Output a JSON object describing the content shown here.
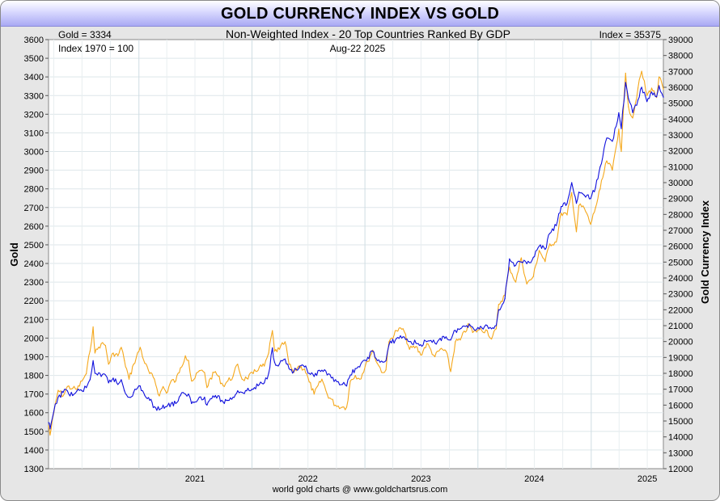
{
  "title": "GOLD CURRENCY INDEX VS GOLD",
  "subtitle": "Non-Weighted Index - 20 Top Countries Ranked By GDP",
  "gold_readout": "Gold = 3334",
  "index_readout": "Index = 35375",
  "base_note": "Index 1970 = 100",
  "date_label": "Aug-22  2025",
  "source": "world gold charts @ www.goldchartsrus.com",
  "colors": {
    "gold": "#f5a81c",
    "index": "#1010dd",
    "title_bg": "#a9a9f4"
  },
  "chart_data": {
    "type": "line",
    "ylabel": "Gold",
    "y2label": "Gold Currency Index",
    "ylim": [
      1300,
      3600
    ],
    "y2lim": [
      12000,
      39000
    ],
    "xlim": [
      "2020-03-15",
      "2025-08-22"
    ],
    "y_ticks": [
      "1300",
      "1400",
      "1500",
      "1600",
      "1700",
      "1800",
      "1900",
      "2000",
      "2100",
      "2200",
      "2300",
      "2400",
      "2500",
      "2600",
      "2700",
      "2800",
      "2900",
      "3000",
      "3100",
      "3200",
      "3300",
      "3400",
      "3500",
      "3600"
    ],
    "y2_ticks": [
      "12000",
      "13000",
      "14000",
      "15000",
      "16000",
      "17000",
      "18000",
      "19000",
      "20000",
      "21000",
      "22000",
      "23000",
      "24000",
      "25000",
      "26000",
      "27000",
      "28000",
      "29000",
      "30000",
      "31000",
      "32000",
      "33000",
      "34000",
      "35000",
      "36000",
      "37000",
      "38000",
      "39000"
    ],
    "x_ticks": [
      "2021",
      "2022",
      "2023",
      "2024",
      "2025"
    ],
    "grid": true,
    "series": [
      {
        "name": "Gold",
        "axis": "left",
        "color": "#f5a81c",
        "points": [
          [
            "2020-03-15",
            1530
          ],
          [
            "2020-03-20",
            1480
          ],
          [
            "2020-04-01",
            1600
          ],
          [
            "2020-04-15",
            1720
          ],
          [
            "2020-05-01",
            1690
          ],
          [
            "2020-05-15",
            1740
          ],
          [
            "2020-06-01",
            1730
          ],
          [
            "2020-06-15",
            1725
          ],
          [
            "2020-07-01",
            1770
          ],
          [
            "2020-07-15",
            1810
          ],
          [
            "2020-07-27",
            1930
          ],
          [
            "2020-08-06",
            2060
          ],
          [
            "2020-08-12",
            1920
          ],
          [
            "2020-08-20",
            1940
          ],
          [
            "2020-09-01",
            1970
          ],
          [
            "2020-09-15",
            1960
          ],
          [
            "2020-09-25",
            1860
          ],
          [
            "2020-10-10",
            1920
          ],
          [
            "2020-10-25",
            1905
          ],
          [
            "2020-11-05",
            1950
          ],
          [
            "2020-11-15",
            1880
          ],
          [
            "2020-11-30",
            1780
          ],
          [
            "2020-12-15",
            1860
          ],
          [
            "2021-01-05",
            1950
          ],
          [
            "2021-01-20",
            1865
          ],
          [
            "2021-02-05",
            1810
          ],
          [
            "2021-02-20",
            1780
          ],
          [
            "2021-03-08",
            1690
          ],
          [
            "2021-03-20",
            1740
          ],
          [
            "2021-03-31",
            1705
          ],
          [
            "2021-04-15",
            1770
          ],
          [
            "2021-04-30",
            1770
          ],
          [
            "2021-05-15",
            1840
          ],
          [
            "2021-05-31",
            1905
          ],
          [
            "2021-06-10",
            1880
          ],
          [
            "2021-06-20",
            1770
          ],
          [
            "2021-07-01",
            1785
          ],
          [
            "2021-07-15",
            1825
          ],
          [
            "2021-08-01",
            1815
          ],
          [
            "2021-08-09",
            1735
          ],
          [
            "2021-08-20",
            1785
          ],
          [
            "2021-09-05",
            1820
          ],
          [
            "2021-09-30",
            1745
          ],
          [
            "2021-10-15",
            1770
          ],
          [
            "2021-11-01",
            1795
          ],
          [
            "2021-11-16",
            1860
          ],
          [
            "2021-11-30",
            1780
          ],
          [
            "2021-12-15",
            1785
          ],
          [
            "2022-01-05",
            1810
          ],
          [
            "2022-01-25",
            1845
          ],
          [
            "2022-02-10",
            1850
          ],
          [
            "2022-02-24",
            1920
          ],
          [
            "2022-03-08",
            2040
          ],
          [
            "2022-03-15",
            1930
          ],
          [
            "2022-03-31",
            1940
          ],
          [
            "2022-04-18",
            1980
          ],
          [
            "2022-05-01",
            1860
          ],
          [
            "2022-05-16",
            1815
          ],
          [
            "2022-06-01",
            1850
          ],
          [
            "2022-06-20",
            1835
          ],
          [
            "2022-07-05",
            1765
          ],
          [
            "2022-07-21",
            1700
          ],
          [
            "2022-08-15",
            1780
          ],
          [
            "2022-09-01",
            1700
          ],
          [
            "2022-09-28",
            1640
          ],
          [
            "2022-10-20",
            1630
          ],
          [
            "2022-11-03",
            1630
          ],
          [
            "2022-11-15",
            1770
          ],
          [
            "2022-12-01",
            1800
          ],
          [
            "2022-12-15",
            1780
          ],
          [
            "2023-01-10",
            1875
          ],
          [
            "2023-01-26",
            1935
          ],
          [
            "2023-02-10",
            1865
          ],
          [
            "2023-02-28",
            1815
          ],
          [
            "2023-03-10",
            1830
          ],
          [
            "2023-03-20",
            1980
          ],
          [
            "2023-04-13",
            2040
          ],
          [
            "2023-05-04",
            2050
          ],
          [
            "2023-05-25",
            1940
          ],
          [
            "2023-06-15",
            1955
          ],
          [
            "2023-06-30",
            1910
          ],
          [
            "2023-07-20",
            1970
          ],
          [
            "2023-08-15",
            1900
          ],
          [
            "2023-09-01",
            1940
          ],
          [
            "2023-09-20",
            1930
          ],
          [
            "2023-10-05",
            1820
          ],
          [
            "2023-10-20",
            1980
          ],
          [
            "2023-11-05",
            1990
          ],
          [
            "2023-12-04",
            2075
          ],
          [
            "2023-12-15",
            2030
          ],
          [
            "2024-01-05",
            2045
          ],
          [
            "2024-01-31",
            2040
          ],
          [
            "2024-02-14",
            1995
          ],
          [
            "2024-02-29",
            2050
          ],
          [
            "2024-03-08",
            2180
          ],
          [
            "2024-03-28",
            2230
          ],
          [
            "2024-04-12",
            2380
          ],
          [
            "2024-05-02",
            2300
          ],
          [
            "2024-05-20",
            2430
          ],
          [
            "2024-06-07",
            2290
          ],
          [
            "2024-06-28",
            2330
          ],
          [
            "2024-07-17",
            2470
          ],
          [
            "2024-08-05",
            2410
          ],
          [
            "2024-08-20",
            2505
          ],
          [
            "2024-09-10",
            2515
          ],
          [
            "2024-09-26",
            2670
          ],
          [
            "2024-10-15",
            2660
          ],
          [
            "2024-10-30",
            2780
          ],
          [
            "2024-11-14",
            2570
          ],
          [
            "2024-11-22",
            2710
          ],
          [
            "2024-12-10",
            2695
          ],
          [
            "2024-12-30",
            2610
          ],
          [
            "2025-01-15",
            2700
          ],
          [
            "2025-01-30",
            2800
          ],
          [
            "2025-02-20",
            2950
          ],
          [
            "2025-03-10",
            2900
          ],
          [
            "2025-03-31",
            3120
          ],
          [
            "2025-04-08",
            3000
          ],
          [
            "2025-04-22",
            3420
          ],
          [
            "2025-05-01",
            3240
          ],
          [
            "2025-05-15",
            3180
          ],
          [
            "2025-06-01",
            3340
          ],
          [
            "2025-06-13",
            3430
          ],
          [
            "2025-06-30",
            3300
          ],
          [
            "2025-07-15",
            3340
          ],
          [
            "2025-07-31",
            3290
          ],
          [
            "2025-08-08",
            3400
          ],
          [
            "2025-08-22",
            3334
          ]
        ]
      },
      {
        "name": "Gold Currency Index",
        "axis": "right",
        "color": "#1010dd",
        "points": [
          [
            "2020-03-15",
            14900
          ],
          [
            "2020-03-20",
            14500
          ],
          [
            "2020-04-01",
            15600
          ],
          [
            "2020-04-15",
            16500
          ],
          [
            "2020-05-01",
            16800
          ],
          [
            "2020-05-15",
            16900
          ],
          [
            "2020-06-01",
            16600
          ],
          [
            "2020-06-15",
            16900
          ],
          [
            "2020-07-01",
            16900
          ],
          [
            "2020-07-15",
            17100
          ],
          [
            "2020-07-27",
            17600
          ],
          [
            "2020-08-06",
            18800
          ],
          [
            "2020-08-12",
            18000
          ],
          [
            "2020-08-20",
            17900
          ],
          [
            "2020-09-01",
            17800
          ],
          [
            "2020-09-15",
            17900
          ],
          [
            "2020-09-25",
            17400
          ],
          [
            "2020-10-10",
            17700
          ],
          [
            "2020-10-25",
            17300
          ],
          [
            "2020-11-05",
            17600
          ],
          [
            "2020-11-15",
            16900
          ],
          [
            "2020-11-30",
            16500
          ],
          [
            "2020-12-15",
            16800
          ],
          [
            "2021-01-05",
            17200
          ],
          [
            "2021-01-20",
            16600
          ],
          [
            "2021-02-05",
            16300
          ],
          [
            "2021-02-20",
            15900
          ],
          [
            "2021-03-08",
            15700
          ],
          [
            "2021-03-20",
            16000
          ],
          [
            "2021-03-31",
            15900
          ],
          [
            "2021-04-15",
            16100
          ],
          [
            "2021-04-30",
            16100
          ],
          [
            "2021-05-15",
            16600
          ],
          [
            "2021-05-31",
            16700
          ],
          [
            "2021-06-10",
            16700
          ],
          [
            "2021-06-20",
            16100
          ],
          [
            "2021-07-01",
            16200
          ],
          [
            "2021-07-15",
            16500
          ],
          [
            "2021-08-01",
            16500
          ],
          [
            "2021-08-09",
            16000
          ],
          [
            "2021-08-20",
            16400
          ],
          [
            "2021-09-05",
            16600
          ],
          [
            "2021-09-30",
            16200
          ],
          [
            "2021-10-15",
            16300
          ],
          [
            "2021-11-01",
            16500
          ],
          [
            "2021-11-16",
            16900
          ],
          [
            "2021-11-30",
            16800
          ],
          [
            "2021-12-15",
            16900
          ],
          [
            "2022-01-05",
            17000
          ],
          [
            "2022-01-25",
            17300
          ],
          [
            "2022-02-10",
            17400
          ],
          [
            "2022-02-24",
            18000
          ],
          [
            "2022-03-08",
            19600
          ],
          [
            "2022-03-15",
            18700
          ],
          [
            "2022-03-31",
            18600
          ],
          [
            "2022-04-18",
            18900
          ],
          [
            "2022-05-01",
            18300
          ],
          [
            "2022-05-16",
            18100
          ],
          [
            "2022-06-01",
            18300
          ],
          [
            "2022-06-20",
            18400
          ],
          [
            "2022-07-05",
            18000
          ],
          [
            "2022-07-21",
            17800
          ],
          [
            "2022-08-15",
            18200
          ],
          [
            "2022-09-01",
            17900
          ],
          [
            "2022-09-28",
            17600
          ],
          [
            "2022-10-20",
            17300
          ],
          [
            "2022-11-03",
            17200
          ],
          [
            "2022-11-15",
            17900
          ],
          [
            "2022-12-01",
            18300
          ],
          [
            "2022-12-15",
            18400
          ],
          [
            "2023-01-10",
            19000
          ],
          [
            "2023-01-26",
            19400
          ],
          [
            "2023-02-10",
            18800
          ],
          [
            "2023-02-28",
            18700
          ],
          [
            "2023-03-10",
            18800
          ],
          [
            "2023-03-20",
            19800
          ],
          [
            "2023-04-13",
            20200
          ],
          [
            "2023-05-04",
            20300
          ],
          [
            "2023-05-25",
            20000
          ],
          [
            "2023-06-15",
            19900
          ],
          [
            "2023-06-30",
            19800
          ],
          [
            "2023-07-20",
            20000
          ],
          [
            "2023-08-15",
            19900
          ],
          [
            "2023-09-01",
            20200
          ],
          [
            "2023-09-20",
            20300
          ],
          [
            "2023-10-05",
            20100
          ],
          [
            "2023-10-20",
            20700
          ],
          [
            "2023-11-05",
            20800
          ],
          [
            "2023-12-04",
            21100
          ],
          [
            "2023-12-15",
            20900
          ],
          [
            "2024-01-05",
            20800
          ],
          [
            "2024-01-31",
            21000
          ],
          [
            "2024-02-14",
            20800
          ],
          [
            "2024-02-29",
            21000
          ],
          [
            "2024-03-08",
            22000
          ],
          [
            "2024-03-28",
            22700
          ],
          [
            "2024-04-12",
            25200
          ],
          [
            "2024-05-02",
            24800
          ],
          [
            "2024-05-20",
            25000
          ],
          [
            "2024-06-07",
            24900
          ],
          [
            "2024-06-28",
            25300
          ],
          [
            "2024-07-17",
            26000
          ],
          [
            "2024-08-05",
            25800
          ],
          [
            "2024-08-20",
            26800
          ],
          [
            "2024-09-10",
            27300
          ],
          [
            "2024-09-26",
            28500
          ],
          [
            "2024-10-15",
            28700
          ],
          [
            "2024-10-30",
            30000
          ],
          [
            "2024-11-14",
            28700
          ],
          [
            "2024-11-22",
            29400
          ],
          [
            "2024-12-10",
            29200
          ],
          [
            "2024-12-30",
            29000
          ],
          [
            "2025-01-15",
            29700
          ],
          [
            "2025-01-30",
            31000
          ],
          [
            "2025-02-20",
            32800
          ],
          [
            "2025-03-10",
            32600
          ],
          [
            "2025-03-31",
            34400
          ],
          [
            "2025-04-08",
            33400
          ],
          [
            "2025-04-22",
            36300
          ],
          [
            "2025-05-01",
            35300
          ],
          [
            "2025-05-15",
            34400
          ],
          [
            "2025-06-01",
            35200
          ],
          [
            "2025-06-13",
            36000
          ],
          [
            "2025-06-30",
            35100
          ],
          [
            "2025-07-15",
            35700
          ],
          [
            "2025-07-31",
            35400
          ],
          [
            "2025-08-08",
            36100
          ],
          [
            "2025-08-22",
            35375
          ]
        ]
      }
    ]
  }
}
